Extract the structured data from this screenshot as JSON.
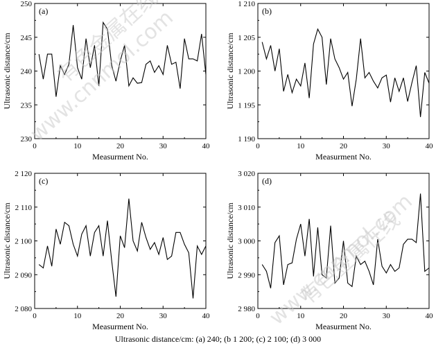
{
  "caption": "Ultrasonic distance/cm: (a) 240; (b 1 200; (c) 2 100; (d) 3 000",
  "watermark": [
    "有色金属在线",
    "www.cnnmol.com"
  ],
  "chart_data": [
    {
      "type": "line",
      "panel": "(a)",
      "xlabel": "Measurment No.",
      "ylabel": "Ultrasonic distance/cm",
      "xlim": [
        0,
        40
      ],
      "ylim": [
        230,
        250
      ],
      "xticks": [
        0,
        10,
        20,
        30,
        40
      ],
      "yticks": [
        230,
        235,
        240,
        245,
        250
      ],
      "ytick_labels": [
        "230",
        "235",
        "240",
        "245",
        "250"
      ],
      "x": [
        1,
        2,
        3,
        4,
        5,
        6,
        7,
        8,
        9,
        10,
        11,
        12,
        13,
        14,
        15,
        16,
        17,
        18,
        19,
        20,
        21,
        22,
        23,
        24,
        25,
        26,
        27,
        28,
        29,
        30,
        31,
        32,
        33,
        34,
        35,
        36,
        37,
        38,
        39,
        40
      ],
      "values": [
        242.5,
        238.8,
        242.5,
        242.5,
        236.2,
        240.8,
        239.5,
        241.0,
        246.8,
        240.5,
        238.8,
        244.8,
        240.5,
        243.8,
        237.8,
        247.2,
        246.2,
        240.8,
        238.5,
        241.5,
        243.8,
        237.8,
        239.0,
        238.2,
        238.3,
        241.0,
        241.5,
        239.8,
        240.8,
        239.5,
        243.8,
        241.0,
        241.3,
        237.4,
        244.8,
        241.8,
        241.8,
        241.5,
        245.5,
        239.5
      ]
    },
    {
      "type": "line",
      "panel": "(b)",
      "xlabel": "Measurment No.",
      "ylabel": "Ultrasonic distance/cm",
      "xlim": [
        0,
        40
      ],
      "ylim": [
        1190,
        1210
      ],
      "xticks": [
        0,
        10,
        20,
        30,
        40
      ],
      "yticks": [
        1190,
        1195,
        1200,
        1205,
        1210
      ],
      "ytick_labels": [
        "1 190",
        "1 195",
        "1 200",
        "1 205",
        "1 210"
      ],
      "x": [
        1,
        2,
        3,
        4,
        5,
        6,
        7,
        8,
        9,
        10,
        11,
        12,
        13,
        14,
        15,
        16,
        17,
        18,
        19,
        20,
        21,
        22,
        23,
        24,
        25,
        26,
        27,
        28,
        29,
        30,
        31,
        32,
        33,
        34,
        35,
        36,
        37,
        38,
        39,
        40
      ],
      "values": [
        1204.3,
        1201.8,
        1203.8,
        1200.0,
        1203.3,
        1197.0,
        1199.5,
        1196.8,
        1198.8,
        1197.8,
        1201.2,
        1196.0,
        1204.0,
        1206.2,
        1205.0,
        1198.0,
        1204.8,
        1201.8,
        1200.5,
        1198.8,
        1199.8,
        1194.8,
        1198.8,
        1204.8,
        1199.0,
        1199.8,
        1198.5,
        1197.5,
        1199.0,
        1199.4,
        1195.4,
        1199.0,
        1197.0,
        1199.0,
        1195.5,
        1198.3,
        1200.8,
        1193.2,
        1199.8,
        1198.2
      ]
    },
    {
      "type": "line",
      "panel": "(c)",
      "xlabel": "Measurment No.",
      "ylabel": "Ultrasonic distance/cm",
      "xlim": [
        0,
        40
      ],
      "ylim": [
        2080,
        2120
      ],
      "xticks": [
        0,
        10,
        20,
        30,
        40
      ],
      "yticks": [
        2080,
        2090,
        2100,
        2110,
        2120
      ],
      "ytick_labels": [
        "2 080",
        "2 090",
        "2 100",
        "2 110",
        "2 120"
      ],
      "x": [
        1,
        2,
        3,
        4,
        5,
        6,
        7,
        8,
        9,
        10,
        11,
        12,
        13,
        14,
        15,
        16,
        17,
        18,
        19,
        20,
        21,
        22,
        23,
        24,
        25,
        26,
        27,
        28,
        29,
        30,
        31,
        32,
        33,
        34,
        35,
        36,
        37,
        38,
        39,
        40
      ],
      "values": [
        2093.0,
        2092.0,
        2098.5,
        2092.5,
        2103.5,
        2099.0,
        2105.5,
        2104.5,
        2099.0,
        2095.5,
        2102.0,
        2104.5,
        2095.5,
        2102.5,
        2104.5,
        2095.5,
        2106.0,
        2094.0,
        2083.5,
        2101.5,
        2098.0,
        2112.5,
        2100.0,
        2097.0,
        2105.5,
        2101.0,
        2097.5,
        2099.5,
        2096.0,
        2101.0,
        2094.5,
        2095.5,
        2102.5,
        2102.5,
        2099.0,
        2096.5,
        2083.0,
        2098.5,
        2096.0,
        2098.5
      ]
    },
    {
      "type": "line",
      "panel": "(d)",
      "xlabel": "Measurment No.",
      "ylabel": "Ultrasonic distance/cm",
      "xlim": [
        0,
        40
      ],
      "ylim": [
        2980,
        3020
      ],
      "xticks": [
        0,
        10,
        20,
        30,
        40
      ],
      "yticks": [
        2980,
        2990,
        3000,
        3010,
        3020
      ],
      "ytick_labels": [
        "2 980",
        "2 990",
        "3 000",
        "3 010",
        "3 020"
      ],
      "x": [
        1,
        2,
        3,
        4,
        5,
        6,
        7,
        8,
        9,
        10,
        11,
        12,
        13,
        14,
        15,
        16,
        17,
        18,
        19,
        20,
        21,
        22,
        23,
        24,
        25,
        26,
        27,
        28,
        29,
        30,
        31,
        32,
        33,
        34,
        35,
        36,
        37,
        38,
        39,
        40
      ],
      "values": [
        2993.0,
        2991.0,
        2986.0,
        2999.5,
        3001.5,
        2987.0,
        2993.0,
        2993.5,
        3000.5,
        3005.0,
        2995.5,
        3006.5,
        2989.5,
        3004.0,
        2990.0,
        2989.0,
        3004.5,
        2987.5,
        2989.0,
        3000.0,
        2987.5,
        2986.5,
        2995.5,
        2993.0,
        2994.0,
        2991.0,
        2987.0,
        3000.5,
        2992.5,
        2990.5,
        2993.0,
        2991.0,
        2992.0,
        2999.0,
        3000.5,
        3000.5,
        2999.5,
        3014.0,
        2991.0,
        2992.0
      ]
    }
  ]
}
